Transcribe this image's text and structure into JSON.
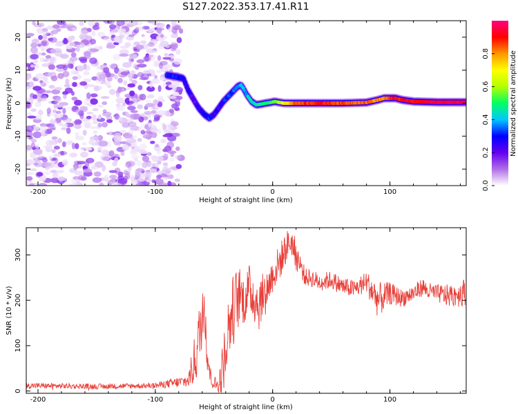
{
  "figure_title": "S127.2022.353.17.41.R11",
  "colors": {
    "accent": "#e8403a",
    "background": "#ffffff",
    "axis": "#000000"
  },
  "chart_data": [
    {
      "type": "heatmap",
      "title": "S127.2022.353.17.41.R11",
      "xlabel": "Height of straight line (km)",
      "ylabel": "Frequency (Hz)",
      "xlim": [
        -210,
        165
      ],
      "ylim": [
        -25,
        25
      ],
      "x_ticks": [
        -200,
        -100,
        0,
        100
      ],
      "x_tick_labels": [
        "-200",
        "-100",
        "0",
        "100"
      ],
      "y_ticks": [
        -20,
        -10,
        0,
        10,
        20
      ],
      "y_tick_labels": [
        "-20",
        "-10",
        "0",
        "10",
        "20"
      ],
      "noise_region": {
        "x_range": [
          -210,
          -78
        ],
        "description": "broadband noise"
      },
      "ridge": {
        "name": "frequency ridge",
        "x": [
          -90,
          -82,
          -76,
          -72,
          -68,
          -63,
          -58,
          -54,
          -50,
          -46,
          -42,
          -38,
          -34,
          -30,
          -27,
          -25,
          -22,
          -18,
          -14,
          -10,
          -6,
          -2,
          2,
          6,
          10,
          20,
          40,
          60,
          80,
          90,
          95,
          100,
          105,
          110,
          120,
          140,
          165
        ],
        "y": [
          8.5,
          8,
          7.5,
          4,
          1.5,
          -1.5,
          -3.5,
          -4.5,
          -3.5,
          -1.5,
          0.5,
          2,
          3.5,
          5,
          5.5,
          4.5,
          2.5,
          0.5,
          -0.5,
          -0.3,
          0,
          0.2,
          0.5,
          0.2,
          0,
          0,
          0,
          0,
          0.2,
          1,
          1.5,
          1.5,
          1.5,
          1,
          0.5,
          0.3,
          0.3
        ],
        "amplitude": [
          0.3,
          0.3,
          0.3,
          0.25,
          0.2,
          0.25,
          0.3,
          0.3,
          0.25,
          0.25,
          0.3,
          0.3,
          0.35,
          0.35,
          0.4,
          0.4,
          0.4,
          0.45,
          0.45,
          0.5,
          0.5,
          0.5,
          0.55,
          0.6,
          0.7,
          0.85,
          0.9,
          0.85,
          0.85,
          0.8,
          0.8,
          0.85,
          0.9,
          0.9,
          0.9,
          0.95,
          0.95
        ]
      },
      "colorbar": {
        "label": "Normalized spectral amplitude",
        "range": [
          0,
          1
        ],
        "ticks": [
          0.0,
          0.2,
          0.4,
          0.6,
          0.8
        ],
        "tick_labels": [
          "0.0",
          "0.2",
          "0.4",
          "0.6",
          "0.8"
        ],
        "colormap": [
          "#ffffff",
          "#b06ee8",
          "#6400f0",
          "#0000ff",
          "#00c8ff",
          "#00ff64",
          "#b4ff00",
          "#ffff00",
          "#ff9600",
          "#ff0000",
          "#ff0080"
        ]
      }
    },
    {
      "type": "line",
      "xlabel": "Height of straight line (km)",
      "ylabel": "SNR (10 * v/v)",
      "xlim": [
        -210,
        165
      ],
      "ylim": [
        -5,
        360
      ],
      "x_ticks": [
        -200,
        -100,
        0,
        100
      ],
      "x_tick_labels": [
        "-200",
        "-100",
        "0",
        "100"
      ],
      "y_ticks": [
        0,
        100,
        200,
        300
      ],
      "y_tick_labels": [
        "0",
        "100",
        "200",
        "300"
      ],
      "series": [
        {
          "name": "SNR",
          "color": "#e8403a",
          "x": [
            -210,
            -150,
            -100,
            -72,
            -66,
            -62,
            -58,
            -56,
            -53,
            -50,
            -46,
            -43,
            -40,
            -36,
            -32,
            -28,
            -24,
            -20,
            -16,
            -12,
            -8,
            -4,
            0,
            4,
            8,
            12,
            16,
            20,
            24,
            28,
            32,
            40,
            50,
            60,
            70,
            80,
            90,
            100,
            110,
            120,
            128,
            132,
            140,
            150,
            160,
            165
          ],
          "y": [
            12,
            10,
            12,
            22,
            70,
            130,
            200,
            90,
            30,
            18,
            12,
            40,
            100,
            160,
            190,
            210,
            200,
            225,
            210,
            190,
            215,
            230,
            255,
            275,
            295,
            320,
            330,
            300,
            275,
            250,
            250,
            240,
            245,
            230,
            225,
            240,
            200,
            215,
            205,
            215,
            230,
            220,
            215,
            210,
            215,
            220
          ],
          "noise_amplitude": [
            6,
            6,
            6,
            15,
            60,
            70,
            60,
            50,
            25,
            15,
            20,
            60,
            70,
            80,
            80,
            60,
            55,
            55,
            60,
            60,
            45,
            40,
            40,
            40,
            40,
            35,
            30,
            35,
            25,
            20,
            20,
            20,
            20,
            20,
            20,
            25,
            40,
            25,
            20,
            20,
            20,
            20,
            20,
            25,
            30,
            30
          ]
        }
      ]
    }
  ]
}
